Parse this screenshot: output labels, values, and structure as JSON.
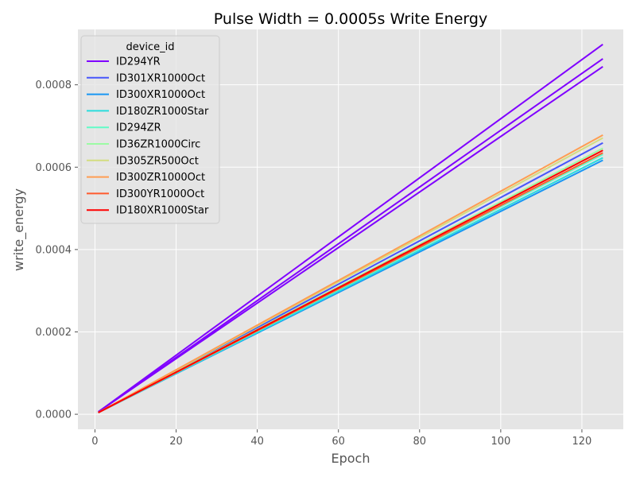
{
  "chart_data": {
    "type": "line",
    "title": "Pulse Width = 0.0005s Write Energy",
    "xlabel": "Epoch",
    "ylabel": "write_energy",
    "xlim": [
      -4.2,
      130.2
    ],
    "ylim": [
      -3.65e-05,
      0.0009345
    ],
    "x_ticks": [
      0,
      20,
      40,
      60,
      80,
      100,
      120
    ],
    "x_tick_labels": [
      "0",
      "20",
      "40",
      "60",
      "80",
      "100",
      "120"
    ],
    "y_ticks": [
      0.0,
      0.0002,
      0.0004,
      0.0006,
      0.0008
    ],
    "y_tick_labels": [
      "0.0000",
      "0.0002",
      "0.0004",
      "0.0006",
      "0.0008"
    ],
    "grid": true,
    "background": "#e5e5e5",
    "legend": {
      "title": "device_id",
      "placement": "upper-left",
      "entries": [
        {
          "name": "ID294YR",
          "color": "#7f00ff"
        },
        {
          "name": "ID301XR1000Oct",
          "color": "#4756fb"
        },
        {
          "name": "ID300XR1000Oct",
          "color": "#1996f3"
        },
        {
          "name": "ID180ZR1000Star",
          "color": "#2adddd"
        },
        {
          "name": "ID294ZR",
          "color": "#62fbc7"
        },
        {
          "name": "ID36ZR1000Circ",
          "color": "#9cfba4"
        },
        {
          "name": "ID305ZR500Oct",
          "color": "#d4dd80"
        },
        {
          "name": "ID300ZR1000Oct",
          "color": "#ff9d52"
        },
        {
          "name": "ID300YR1000Oct",
          "color": "#ff5a2d"
        },
        {
          "name": "ID180XR1000Star",
          "color": "#ff0000"
        }
      ]
    },
    "series": [
      {
        "name": "ID294YR",
        "color": "#7f00ff",
        "x": [
          1,
          125
        ],
        "y": [
          7e-06,
          0.000897
        ]
      },
      {
        "name": "ID294YR",
        "color": "#7f00ff",
        "x": [
          1,
          125
        ],
        "y": [
          7e-06,
          0.000862
        ]
      },
      {
        "name": "ID294YR",
        "color": "#7f00ff",
        "x": [
          1,
          125
        ],
        "y": [
          7e-06,
          0.000843
        ]
      },
      {
        "name": "ID301XR1000Oct",
        "color": "#4756fb",
        "x": [
          1,
          125
        ],
        "y": [
          5e-06,
          0.000658
        ]
      },
      {
        "name": "ID300XR1000Oct",
        "color": "#1996f3",
        "x": [
          1,
          125
        ],
        "y": [
          5e-06,
          0.000616
        ]
      },
      {
        "name": "ID180ZR1000Star",
        "color": "#2adddd",
        "x": [
          1,
          125
        ],
        "y": [
          5e-06,
          0.000622
        ]
      },
      {
        "name": "ID294ZR",
        "color": "#62fbc7",
        "x": [
          1,
          125
        ],
        "y": [
          5e-06,
          0.00063
        ]
      },
      {
        "name": "ID36ZR1000Circ",
        "color": "#9cfba4",
        "x": [
          1,
          125
        ],
        "y": [
          5e-06,
          0.000645
        ]
      },
      {
        "name": "ID305ZR500Oct",
        "color": "#d4dd80",
        "x": [
          1,
          125
        ],
        "y": [
          5e-06,
          0.00067
        ]
      },
      {
        "name": "ID300ZR1000Oct",
        "color": "#ff9d52",
        "x": [
          1,
          125
        ],
        "y": [
          5e-06,
          0.000677
        ]
      },
      {
        "name": "ID300YR1000Oct",
        "color": "#ff5a2d",
        "x": [
          1,
          125
        ],
        "y": [
          5e-06,
          0.000634
        ]
      },
      {
        "name": "ID180XR1000Star",
        "color": "#ff0000",
        "x": [
          1,
          125
        ],
        "y": [
          5e-06,
          0.00064
        ]
      }
    ]
  }
}
